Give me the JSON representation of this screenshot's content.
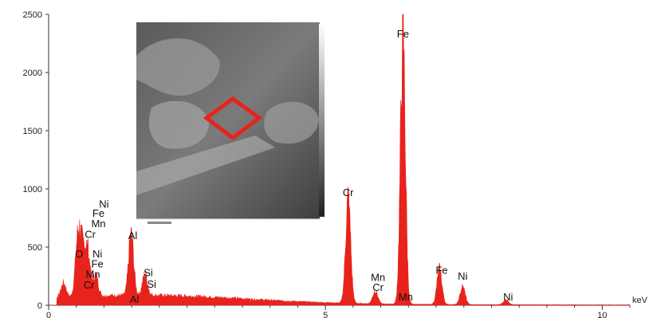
{
  "chart_data": {
    "type": "line",
    "title": "",
    "xlabel": "keV",
    "ylabel": "",
    "xlim": [
      0,
      10.5
    ],
    "ylim": [
      0,
      2500
    ],
    "x_ticks": [
      0,
      5,
      10
    ],
    "y_ticks": [
      0,
      500,
      1000,
      1500,
      2000,
      2500
    ],
    "series": [
      {
        "color": "#e8231d",
        "peaks": [
          {
            "x": 0.27,
            "y": 120
          },
          {
            "x": 0.52,
            "y": 360
          },
          {
            "x": 0.57,
            "y": 310
          },
          {
            "x": 0.64,
            "y": 250
          },
          {
            "x": 0.71,
            "y": 330
          },
          {
            "x": 0.85,
            "y": 180
          },
          {
            "x": 1.49,
            "y": 520
          },
          {
            "x": 1.74,
            "y": 180
          },
          {
            "x": 5.41,
            "y": 900
          },
          {
            "x": 5.9,
            "y": 110
          },
          {
            "x": 6.4,
            "y": 2260
          },
          {
            "x": 7.06,
            "y": 300
          },
          {
            "x": 7.48,
            "y": 150
          },
          {
            "x": 8.26,
            "y": 40
          }
        ],
        "background_level": 70
      }
    ],
    "annotations": [
      {
        "text": "Fe",
        "x": 6.4,
        "y": 2300
      },
      {
        "text": "Cr",
        "x": 5.41,
        "y": 940
      },
      {
        "text": "Ni",
        "x": 1.0,
        "y": 840
      },
      {
        "text": "Fe",
        "x": 0.9,
        "y": 760
      },
      {
        "text": "Mn",
        "x": 0.9,
        "y": 670
      },
      {
        "text": "Cr",
        "x": 0.75,
        "y": 580
      },
      {
        "text": "Al",
        "x": 1.52,
        "y": 570
      },
      {
        "text": "O",
        "x": 0.55,
        "y": 410
      },
      {
        "text": "Ni",
        "x": 0.88,
        "y": 410
      },
      {
        "text": "Fe",
        "x": 0.88,
        "y": 325
      },
      {
        "text": "Mn",
        "x": 0.8,
        "y": 235
      },
      {
        "text": "Cr",
        "x": 0.73,
        "y": 145
      },
      {
        "text": "Si",
        "x": 1.8,
        "y": 250
      },
      {
        "text": "Si",
        "x": 1.86,
        "y": 150
      },
      {
        "text": "Al",
        "x": 1.55,
        "y": 20
      },
      {
        "text": "Mn",
        "x": 5.95,
        "y": 210
      },
      {
        "text": "Cr",
        "x": 5.95,
        "y": 125
      },
      {
        "text": "Mn",
        "x": 6.45,
        "y": 40
      },
      {
        "text": "Fe",
        "x": 7.1,
        "y": 270
      },
      {
        "text": "Ni",
        "x": 7.48,
        "y": 220
      },
      {
        "text": "Ni",
        "x": 8.3,
        "y": 40
      }
    ],
    "grid": false,
    "inset_image": {
      "description_icon": "sem-micrograph",
      "highlight_color": "#e8231d"
    }
  }
}
